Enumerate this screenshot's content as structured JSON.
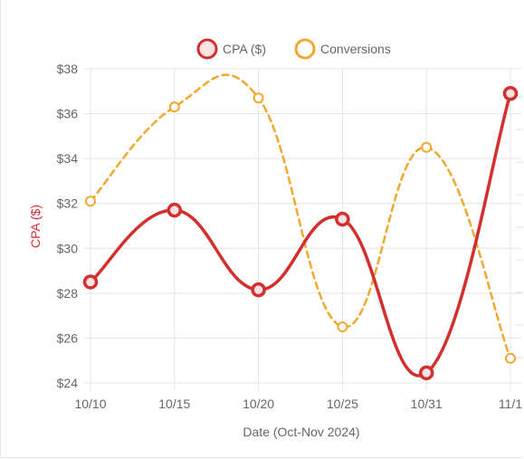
{
  "chart_data": {
    "type": "line",
    "categories": [
      "10/10",
      "10/15",
      "10/20",
      "10/25",
      "10/31",
      "11/1"
    ],
    "series": [
      {
        "name": "CPA ($)",
        "values": [
          28.5,
          31.7,
          28.15,
          31.3,
          24.45,
          36.9
        ],
        "color": "#d32f2f",
        "style": "solid",
        "axis": "left"
      },
      {
        "name": "Conversions",
        "values": [
          32.1,
          36.3,
          36.7,
          26.5,
          34.5,
          25.1
        ],
        "color": "#f0a830",
        "style": "dashed",
        "axis": "left"
      }
    ],
    "ylim": [
      24,
      38
    ],
    "y_ticks": [
      "$24",
      "$26",
      "$28",
      "$30",
      "$32",
      "$34",
      "$36",
      "$38"
    ],
    "xlabel": "Date (Oct-Nov 2024)",
    "ylabel": "CPA ($)",
    "ylabel_color": "#d32f2f",
    "legend_position": "top",
    "grid": true
  }
}
